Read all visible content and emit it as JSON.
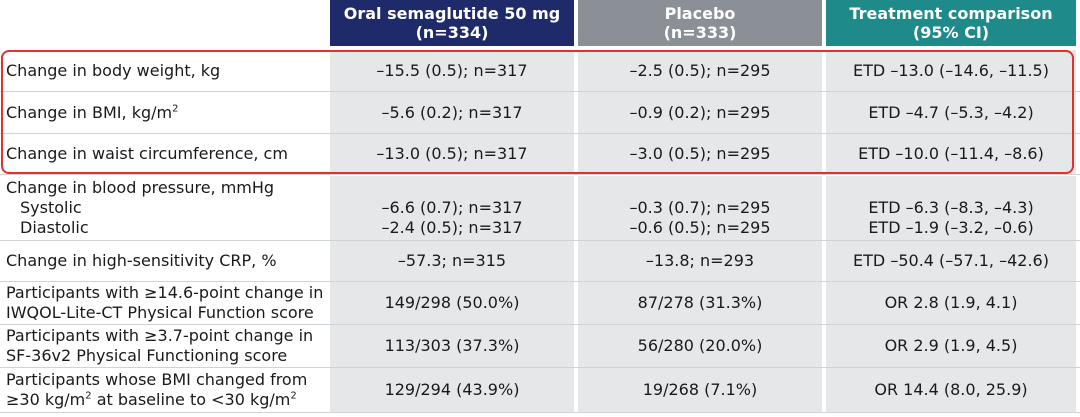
{
  "headers": {
    "col1": [
      "Oral semaglutide 50 mg",
      "(n=334)"
    ],
    "col2": [
      "Placebo",
      "(n=333)"
    ],
    "col3": [
      "Treatment comparison",
      "(95% CI)"
    ]
  },
  "rows": [
    {
      "label": [
        "Change in body weight, kg"
      ],
      "c1": [
        "–15.5 (0.5); n=317"
      ],
      "c2": [
        "–2.5 (0.5); n=295"
      ],
      "c3": [
        "ETD –13.0 (–14.6, –11.5)"
      ]
    },
    {
      "label": [
        "Change in BMI, kg/m",
        "2"
      ],
      "c1": [
        "–5.6 (0.2); n=317"
      ],
      "c2": [
        "–0.9 (0.2); n=295"
      ],
      "c3": [
        "ETD –4.7 (–5.3, –4.2)"
      ]
    },
    {
      "label": [
        "Change in waist circumference, cm"
      ],
      "c1": [
        "–13.0 (0.5); n=317"
      ],
      "c2": [
        "–3.0 (0.5); n=295"
      ],
      "c3": [
        "ETD –10.0 (–11.4, –8.6)"
      ]
    },
    {
      "label": [
        "Change in blood pressure, mmHg",
        "Systolic",
        "Diastolic"
      ],
      "c1": [
        "–6.6 (0.7); n=317",
        "–2.4 (0.5); n=317"
      ],
      "c2": [
        "–0.3 (0.7); n=295",
        "–0.6 (0.5); n=295"
      ],
      "c3": [
        "ETD –6.3 (–8.3, –4.3)",
        "ETD –1.9 (–3.2, –0.6)"
      ]
    },
    {
      "label": [
        "Change in high-sensitivity CRP, %"
      ],
      "c1": [
        "–57.3; n=315"
      ],
      "c2": [
        "–13.8; n=293"
      ],
      "c3": [
        "ETD –50.4 (–57.1, –42.6)"
      ]
    },
    {
      "label": [
        "Participants with ≥14.6-point change in",
        "IWQOL-Lite-CT Physical Function score"
      ],
      "c1": [
        "149/298 (50.0%)"
      ],
      "c2": [
        "87/278 (31.3%)"
      ],
      "c3": [
        "OR 2.8 (1.9, 4.1)"
      ]
    },
    {
      "label": [
        "Participants with ≥3.7-point change in",
        "SF-36v2 Physical Functioning score"
      ],
      "c1": [
        "113/303 (37.3%)"
      ],
      "c2": [
        "56/280 (20.0%)"
      ],
      "c3": [
        "OR 2.9 (1.9, 4.5)"
      ]
    },
    {
      "label": [
        "Participants whose BMI changed from",
        "≥30 kg/m",
        "2",
        " at baseline to <30 kg/m",
        "2"
      ],
      "c1": [
        "129/294 (43.9%)"
      ],
      "c2": [
        "19/268 (7.1%)"
      ],
      "c3": [
        "OR 14.4 (8.0, 25.9)"
      ]
    }
  ]
}
